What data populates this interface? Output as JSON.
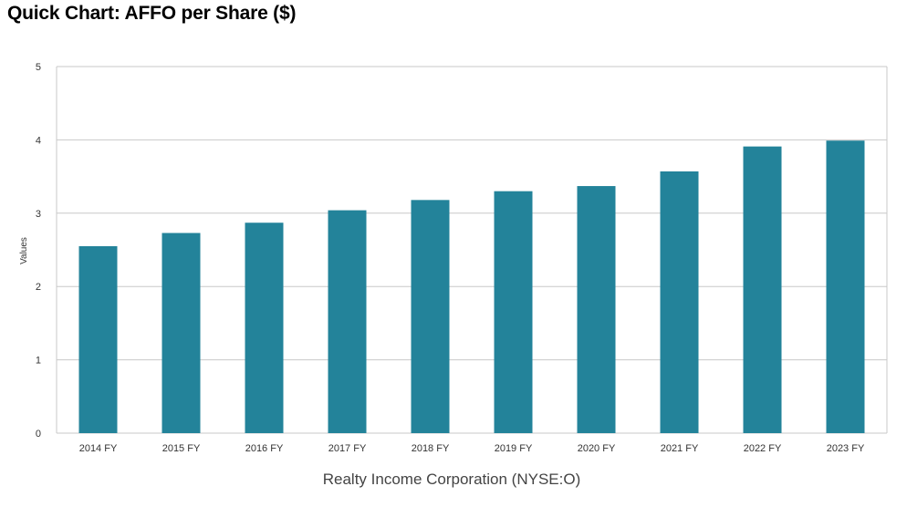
{
  "chart_data": {
    "type": "bar",
    "title": "Quick Chart: AFFO per Share ($)",
    "categories": [
      "2014 FY",
      "2015 FY",
      "2016 FY",
      "2017 FY",
      "2018 FY",
      "2019 FY",
      "2020 FY",
      "2021 FY",
      "2022 FY",
      "2023 FY"
    ],
    "values": [
      2.55,
      2.73,
      2.87,
      3.04,
      3.18,
      3.3,
      3.37,
      3.57,
      3.91,
      3.99
    ],
    "xlabel": "Realty Income Corporation (NYSE:O)",
    "ylabel": "Values",
    "ylim": [
      0,
      5
    ],
    "yticks": [
      0,
      1,
      2,
      3,
      4,
      5
    ],
    "grid": true,
    "bar_color": "#23839a",
    "grid_color": "#c8c8c8"
  }
}
